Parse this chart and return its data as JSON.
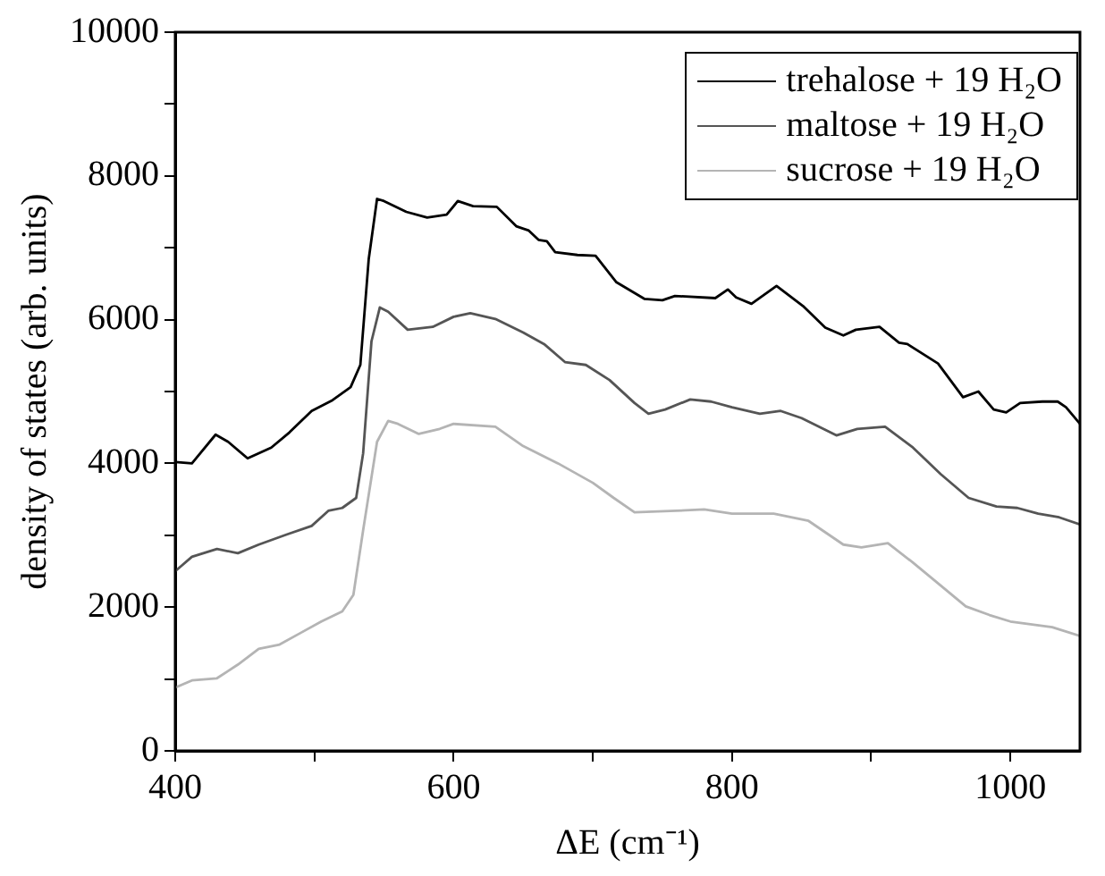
{
  "chart_data": {
    "type": "line",
    "xlabel": "ΔE (cm⁻¹)",
    "ylabel": "density of states (arb. units)",
    "xlim": [
      400,
      1050
    ],
    "ylim": [
      0,
      10000
    ],
    "xticks": [
      400,
      {
        "value": 500,
        "label": null
      },
      600,
      {
        "value": 700,
        "label": null
      },
      800,
      {
        "value": 900,
        "label": null
      },
      1000
    ],
    "yticks": [
      0,
      {
        "value": 1000,
        "label": null
      },
      2000,
      {
        "value": 3000,
        "label": null
      },
      4000,
      {
        "value": 5000,
        "label": null
      },
      6000,
      {
        "value": 7000,
        "label": null
      },
      8000,
      {
        "value": 9000,
        "label": null
      },
      10000
    ],
    "grid": false,
    "legend": "top right",
    "marker": "none",
    "line_style": "solid",
    "series": [
      {
        "name": "trehalose + 19 H₂O",
        "color": "#000000",
        "x": [
          400,
          412,
          429,
          438,
          452,
          469,
          482,
          498,
          513,
          526,
          533,
          539,
          545,
          550,
          566,
          581,
          595,
          603,
          614,
          631,
          645,
          654,
          661,
          667,
          673,
          689,
          702,
          717,
          737,
          750,
          759,
          788,
          797,
          803,
          814,
          832,
          851,
          867,
          880,
          889,
          906,
          920,
          926,
          948,
          966,
          977,
          988,
          997,
          1007,
          1023,
          1034,
          1040,
          1050
        ],
        "values": [
          4020,
          4000,
          4400,
          4300,
          4070,
          4220,
          4430,
          4730,
          4880,
          5060,
          5370,
          6840,
          7680,
          7650,
          7500,
          7420,
          7460,
          7650,
          7580,
          7570,
          7300,
          7240,
          7110,
          7090,
          6940,
          6900,
          6890,
          6520,
          6290,
          6270,
          6330,
          6300,
          6420,
          6310,
          6220,
          6470,
          6190,
          5890,
          5780,
          5860,
          5900,
          5680,
          5660,
          5390,
          4920,
          5000,
          4750,
          4710,
          4840,
          4860,
          4860,
          4780,
          4550
        ]
      },
      {
        "name": "maltose + 19 H₂O",
        "color": "#555555",
        "x": [
          400,
          412,
          430,
          445,
          460,
          480,
          498,
          510,
          520,
          530,
          535,
          541,
          547,
          553,
          567,
          585,
          600,
          612,
          630,
          650,
          665,
          680,
          695,
          712,
          730,
          740,
          752,
          770,
          785,
          800,
          820,
          835,
          850,
          875,
          890,
          910,
          930,
          950,
          970,
          990,
          1005,
          1020,
          1035,
          1050
        ],
        "values": [
          2500,
          2700,
          2810,
          2750,
          2870,
          3010,
          3130,
          3340,
          3380,
          3520,
          4140,
          5700,
          6170,
          6110,
          5860,
          5900,
          6040,
          6090,
          6010,
          5820,
          5660,
          5410,
          5370,
          5160,
          4840,
          4690,
          4750,
          4890,
          4860,
          4780,
          4690,
          4730,
          4630,
          4390,
          4480,
          4510,
          4220,
          3850,
          3520,
          3400,
          3380,
          3300,
          3250,
          3150
        ]
      },
      {
        "name": "sucrose + 19 H₂O",
        "color": "#b4b4b4",
        "x": [
          400,
          412,
          430,
          445,
          460,
          475,
          490,
          505,
          520,
          528,
          535,
          545,
          553,
          560,
          575,
          590,
          600,
          630,
          650,
          675,
          700,
          715,
          730,
          760,
          780,
          800,
          830,
          855,
          880,
          893,
          912,
          930,
          950,
          968,
          985,
          1000,
          1030,
          1050
        ],
        "values": [
          880,
          980,
          1010,
          1200,
          1420,
          1480,
          1640,
          1800,
          1940,
          2170,
          3070,
          4300,
          4590,
          4550,
          4410,
          4480,
          4550,
          4510,
          4240,
          4000,
          3730,
          3520,
          3320,
          3340,
          3360,
          3300,
          3300,
          3200,
          2870,
          2830,
          2890,
          2620,
          2300,
          2010,
          1890,
          1800,
          1720,
          1600
        ]
      }
    ]
  }
}
